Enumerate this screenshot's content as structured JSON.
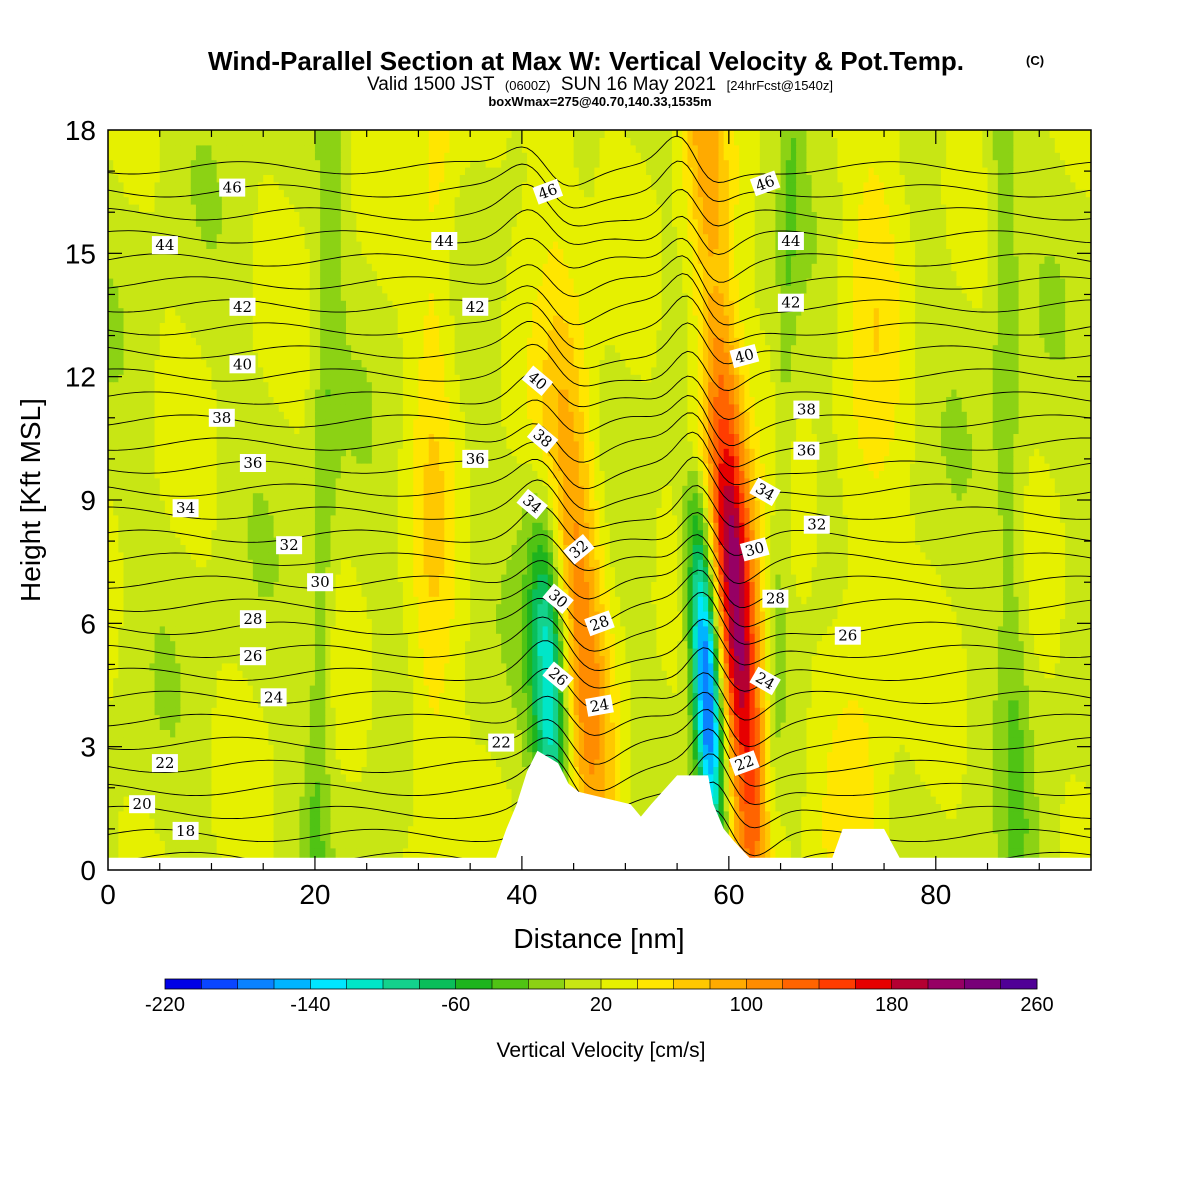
{
  "title": {
    "main": "Wind-Parallel Section at Max W: Vertical Velocity & Pot.Temp.",
    "copyright": "(C)",
    "line2_a": "Valid 1500 JST",
    "line2_b": "(0600Z)",
    "line2_c": "SUN 16 May 2021",
    "line2_d": "[24hrFcst@1540z]",
    "line3": "boxWmax=275@40.70,140.33,1535m"
  },
  "chart_data": {
    "type": "heatmap",
    "xlabel": "Distance [nm]",
    "ylabel": "Height [Kft MSL]",
    "xlim": [
      0,
      95
    ],
    "ylim": [
      0,
      18
    ],
    "x_ticks": [
      0,
      20,
      40,
      60,
      80
    ],
    "y_ticks": [
      0,
      3,
      6,
      9,
      12,
      15,
      18
    ],
    "colorbar": {
      "title": "Vertical Velocity [cm/s]",
      "min": -220,
      "max": 260,
      "step": 20,
      "tick_labels": [
        "-220",
        "-140",
        "-60",
        "20",
        "100",
        "180",
        "260"
      ],
      "colors": [
        "#0000e6",
        "#0a46ff",
        "#0a82ff",
        "#00b4ff",
        "#00e6ff",
        "#00e6c8",
        "#14d28c",
        "#0abe5a",
        "#1eb41e",
        "#50c314",
        "#8cd214",
        "#c8e614",
        "#e6f000",
        "#ffe600",
        "#ffc800",
        "#ffaa00",
        "#ff8c00",
        "#ff6400",
        "#ff3c00",
        "#e60000",
        "#b40032",
        "#960064",
        "#780078",
        "#500096"
      ]
    },
    "updrafts": [
      {
        "x0": 45.0,
        "dx_per_kft": 0.25,
        "width": 2.6,
        "value": 95
      },
      {
        "x0": 60.0,
        "dx_per_kft": 0.28,
        "width": 2.2,
        "value": 200
      }
    ],
    "downdrafts": [
      {
        "x0": 42.0,
        "dx_per_kft": 0.15,
        "width": 1.8,
        "value": -140
      },
      {
        "x0": 57.0,
        "dx_per_kft": 0.2,
        "width": 1.4,
        "value": -220
      }
    ],
    "terrain": [
      [
        0,
        0.3
      ],
      [
        37.5,
        0.3
      ],
      [
        38.5,
        1.0
      ],
      [
        39.5,
        1.6
      ],
      [
        40.5,
        2.4
      ],
      [
        41.5,
        2.9
      ],
      [
        43.5,
        2.6
      ],
      [
        44.5,
        2.1
      ],
      [
        45.5,
        1.9
      ],
      [
        50.5,
        1.6
      ],
      [
        51.5,
        1.3
      ],
      [
        52.5,
        1.6
      ],
      [
        55.0,
        2.3
      ],
      [
        58.0,
        2.3
      ],
      [
        58.5,
        1.6
      ],
      [
        59.5,
        1.0
      ],
      [
        60.5,
        0.7
      ],
      [
        62.0,
        0.3
      ],
      [
        70.0,
        0.3
      ],
      [
        71.0,
        1.0
      ],
      [
        75.0,
        1.0
      ],
      [
        76.5,
        0.3
      ],
      [
        95,
        0.3
      ]
    ],
    "theta_lines": [
      17,
      18,
      19,
      20,
      21,
      22,
      23,
      24,
      25,
      26,
      27,
      28,
      29,
      30,
      31,
      32,
      33,
      34,
      35,
      36,
      37,
      38,
      39,
      40,
      41,
      42,
      43,
      44,
      45,
      46,
      47,
      48
    ],
    "contour_labels": [
      {
        "text": "46",
        "x": 12,
        "y": 16.6
      },
      {
        "text": "44",
        "x": 5.5,
        "y": 15.2
      },
      {
        "text": "42",
        "x": 13,
        "y": 13.7
      },
      {
        "text": "40",
        "x": 13,
        "y": 12.3
      },
      {
        "text": "38",
        "x": 11,
        "y": 11.0
      },
      {
        "text": "36",
        "x": 14,
        "y": 9.9
      },
      {
        "text": "34",
        "x": 7.5,
        "y": 8.8
      },
      {
        "text": "32",
        "x": 17.5,
        "y": 7.9
      },
      {
        "text": "30",
        "x": 20.5,
        "y": 7.0
      },
      {
        "text": "28",
        "x": 14,
        "y": 6.1
      },
      {
        "text": "26",
        "x": 14,
        "y": 5.2
      },
      {
        "text": "24",
        "x": 16,
        "y": 4.2
      },
      {
        "text": "22",
        "x": 5.5,
        "y": 2.6
      },
      {
        "text": "20",
        "x": 3.3,
        "y": 1.6
      },
      {
        "text": "18",
        "x": 7.5,
        "y": 0.95
      },
      {
        "text": "44",
        "x": 32.5,
        "y": 15.3
      },
      {
        "text": "42",
        "x": 35.5,
        "y": 13.7
      },
      {
        "text": "36",
        "x": 35.5,
        "y": 10.0
      },
      {
        "text": "22",
        "x": 38.0,
        "y": 3.1
      },
      {
        "text": "46",
        "x": 42.5,
        "y": 16.5,
        "angle": -20
      },
      {
        "text": "40",
        "x": 41.5,
        "y": 11.9,
        "angle": 40
      },
      {
        "text": "38",
        "x": 42.0,
        "y": 10.5,
        "angle": 40
      },
      {
        "text": "34",
        "x": 41.0,
        "y": 8.9,
        "angle": 40
      },
      {
        "text": "32",
        "x": 45.5,
        "y": 7.8,
        "angle": -40
      },
      {
        "text": "30",
        "x": 43.5,
        "y": 6.6,
        "angle": 40
      },
      {
        "text": "28",
        "x": 47.5,
        "y": 6.0,
        "angle": -20
      },
      {
        "text": "26",
        "x": 43.5,
        "y": 4.7,
        "angle": 40
      },
      {
        "text": "24",
        "x": 47.5,
        "y": 4.0,
        "angle": -10
      },
      {
        "text": "46",
        "x": 63.5,
        "y": 16.7,
        "angle": -20
      },
      {
        "text": "44",
        "x": 66.0,
        "y": 15.3
      },
      {
        "text": "42",
        "x": 66.0,
        "y": 13.8
      },
      {
        "text": "40",
        "x": 61.5,
        "y": 12.5,
        "angle": -15
      },
      {
        "text": "38",
        "x": 67.5,
        "y": 11.2
      },
      {
        "text": "36",
        "x": 67.5,
        "y": 10.2
      },
      {
        "text": "34",
        "x": 63.5,
        "y": 9.2,
        "angle": 30
      },
      {
        "text": "32",
        "x": 68.5,
        "y": 8.4
      },
      {
        "text": "30",
        "x": 62.5,
        "y": 7.8,
        "angle": -15
      },
      {
        "text": "28",
        "x": 64.5,
        "y": 6.6
      },
      {
        "text": "26",
        "x": 71.5,
        "y": 5.7
      },
      {
        "text": "24",
        "x": 63.5,
        "y": 4.6,
        "angle": 30
      },
      {
        "text": "22",
        "x": 61.5,
        "y": 2.6,
        "angle": -20
      }
    ]
  }
}
